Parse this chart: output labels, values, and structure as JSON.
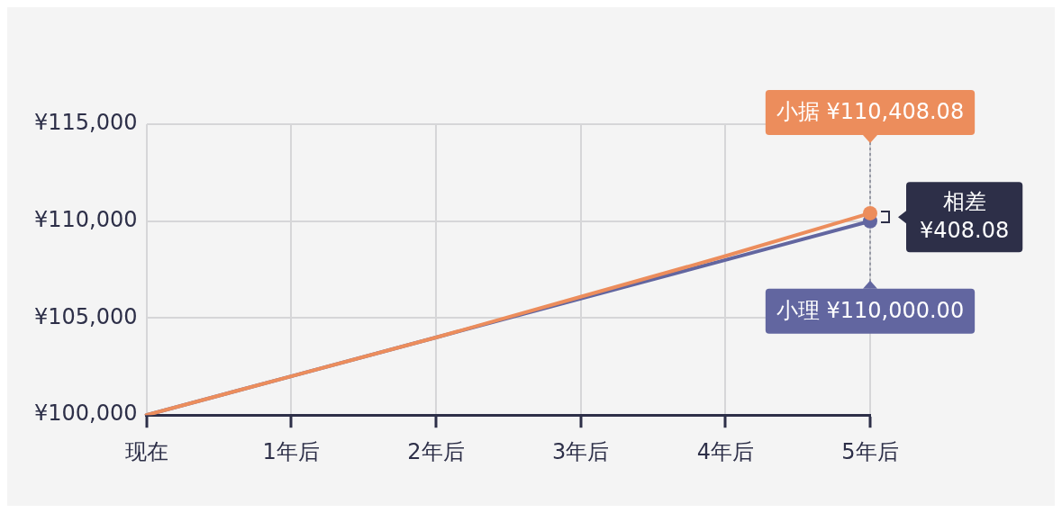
{
  "chart_data": {
    "type": "line",
    "categories": [
      "现在",
      "1年后",
      "2年后",
      "3年后",
      "4年后",
      "5年后"
    ],
    "series": [
      {
        "name": "小据",
        "color": "#ec8d5c",
        "values": [
          100000,
          102000,
          104000,
          106100,
          108200,
          110408.08
        ],
        "value_labels": [
          null,
          null,
          null,
          null,
          null,
          "¥110,408.08"
        ]
      },
      {
        "name": "小理",
        "color": "#6266a0",
        "values": [
          100000,
          102000,
          104000,
          106000,
          108000,
          110000
        ],
        "value_labels": [
          null,
          null,
          null,
          null,
          null,
          "¥110,000.00"
        ]
      }
    ],
    "ylim": [
      100000,
      115000
    ],
    "yticks": [
      {
        "value": 100000,
        "label": "¥100,000"
      },
      {
        "value": 105000,
        "label": "¥105,000"
      },
      {
        "value": 110000,
        "label": "¥110,000"
      },
      {
        "value": 115000,
        "label": "¥115,000"
      }
    ],
    "grid": true,
    "legend": false,
    "line_style": "solid",
    "annotations": [
      "相差\n¥408.08"
    ]
  }
}
